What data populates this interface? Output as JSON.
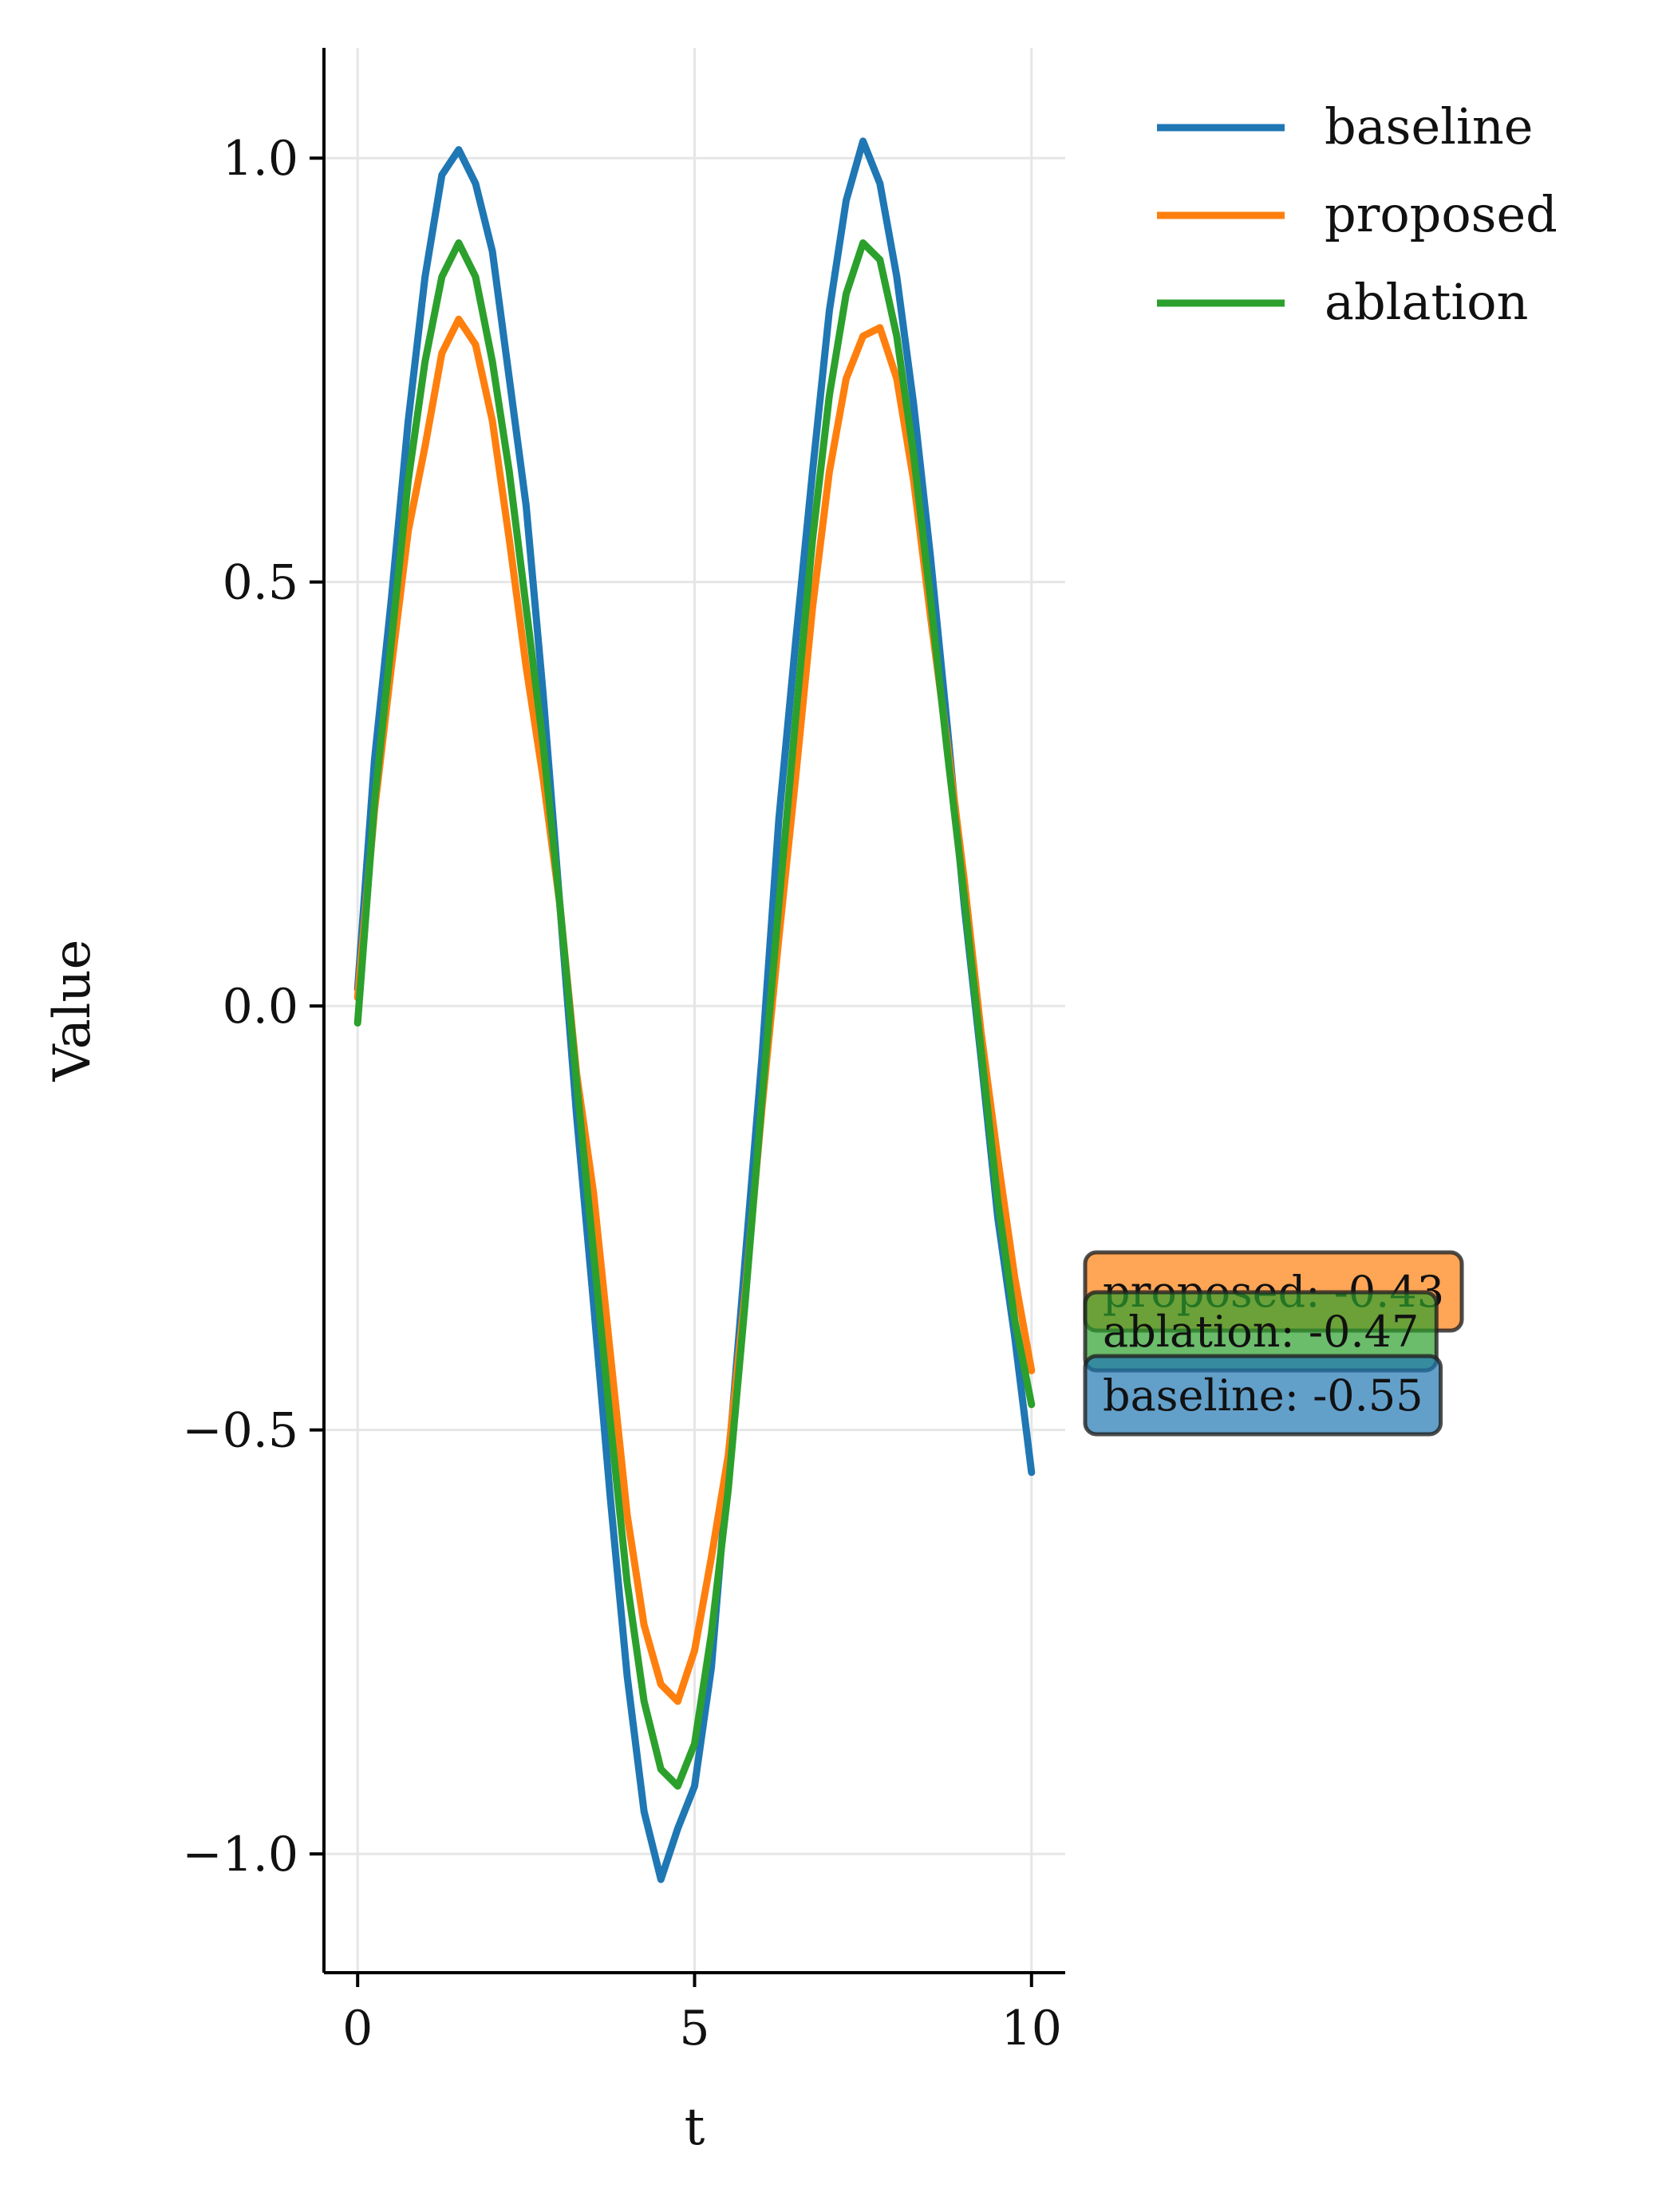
{
  "chart_data": {
    "type": "line",
    "title": "",
    "xlabel": "t",
    "ylabel": "Value",
    "xlim": [
      -0.5,
      10.5
    ],
    "ylim": [
      -1.14,
      1.13
    ],
    "xticks": [
      0,
      5,
      10
    ],
    "xtick_labels": [
      "0",
      "5",
      "10"
    ],
    "yticks": [
      1.0,
      0.5,
      0.0,
      -0.5,
      -1.0
    ],
    "ytick_labels": [
      "1.0",
      "0.5",
      "0.0",
      "−0.5",
      "−1.0"
    ],
    "grid": true,
    "legend_position": "top-right, outside plot",
    "x": [
      0,
      0.25,
      0.5,
      0.75,
      1,
      1.25,
      1.5,
      1.75,
      2,
      2.25,
      2.5,
      2.75,
      3,
      3.25,
      3.5,
      3.75,
      4,
      4.25,
      4.5,
      4.75,
      5,
      5.25,
      5.5,
      5.75,
      6,
      6.25,
      6.5,
      6.75,
      7,
      7.25,
      7.5,
      7.75,
      8,
      8.25,
      8.5,
      8.75,
      9,
      9.25,
      9.5,
      9.75,
      10
    ],
    "series": [
      {
        "name": "baseline",
        "color": "#1f77b4",
        "values": [
          0.02,
          0.29,
          0.48,
          0.69,
          0.86,
          0.98,
          1.01,
          0.97,
          0.89,
          0.74,
          0.59,
          0.37,
          0.12,
          -0.13,
          -0.35,
          -0.58,
          -0.79,
          -0.95,
          -1.03,
          -0.97,
          -0.92,
          -0.78,
          -0.54,
          -0.3,
          -0.06,
          0.22,
          0.43,
          0.63,
          0.82,
          0.95,
          1.02,
          0.97,
          0.86,
          0.71,
          0.53,
          0.33,
          0.12,
          -0.06,
          -0.25,
          -0.39,
          -0.55
        ]
      },
      {
        "name": "proposed",
        "color": "#ff7f0e",
        "values": [
          0.01,
          0.23,
          0.4,
          0.56,
          0.66,
          0.77,
          0.81,
          0.78,
          0.69,
          0.55,
          0.4,
          0.27,
          0.12,
          -0.08,
          -0.22,
          -0.41,
          -0.6,
          -0.73,
          -0.8,
          -0.82,
          -0.76,
          -0.65,
          -0.53,
          -0.34,
          -0.12,
          0.08,
          0.27,
          0.47,
          0.63,
          0.74,
          0.79,
          0.8,
          0.74,
          0.62,
          0.46,
          0.31,
          0.15,
          -0.03,
          -0.18,
          -0.32,
          -0.43
        ]
      },
      {
        "name": "ablation",
        "color": "#2ca02c",
        "values": [
          -0.02,
          0.24,
          0.43,
          0.62,
          0.76,
          0.86,
          0.9,
          0.86,
          0.76,
          0.63,
          0.47,
          0.31,
          0.12,
          -0.09,
          -0.29,
          -0.49,
          -0.68,
          -0.82,
          -0.9,
          -0.92,
          -0.87,
          -0.74,
          -0.57,
          -0.35,
          -0.11,
          0.12,
          0.34,
          0.55,
          0.72,
          0.84,
          0.9,
          0.88,
          0.79,
          0.65,
          0.48,
          0.3,
          0.13,
          -0.05,
          -0.23,
          -0.37,
          -0.47
        ]
      }
    ],
    "end_labels": [
      {
        "text": "proposed: -0.43",
        "color": "#ff7f0e"
      },
      {
        "text": "ablation: -0.47",
        "color": "#2ca02c"
      },
      {
        "text": "baseline: -0.55",
        "color": "#1f77b4"
      }
    ]
  }
}
